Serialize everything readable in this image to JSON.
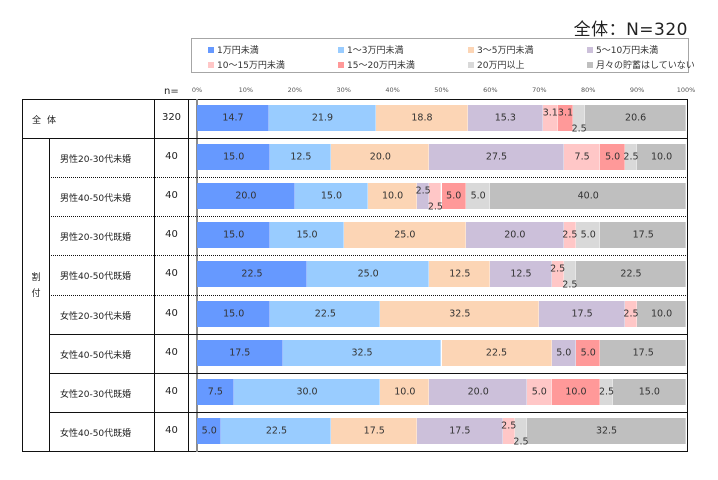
{
  "chart_data": {
    "type": "bar",
    "orientation": "horizontal-stacked-100",
    "title": "全体：N=320",
    "xlabel": "",
    "ylabel": "",
    "xlim": [
      0,
      100
    ],
    "x_ticks": [
      "0%",
      "10%",
      "20%",
      "30%",
      "40%",
      "50%",
      "60%",
      "70%",
      "80%",
      "90%",
      "100%"
    ],
    "n_header": "n=",
    "group_label": "割付",
    "legend_position": "top",
    "series": [
      {
        "name": "1万円未満",
        "color": "#6699ff"
      },
      {
        "name": "1～3万円未満",
        "color": "#99ccff"
      },
      {
        "name": "3～5万円未満",
        "color": "#fcd5b5"
      },
      {
        "name": "5～10万円未満",
        "color": "#ccc0da"
      },
      {
        "name": "10～15万円未満",
        "color": "#ffc7c7"
      },
      {
        "name": "15～20万円未満",
        "color": "#ff9999"
      },
      {
        "name": "20万円以上",
        "color": "#d9d9d9"
      },
      {
        "name": "月々の貯蓄はしていない",
        "color": "#bfbfbf"
      }
    ],
    "rows": [
      {
        "label": "全体",
        "n": "320",
        "values": [
          14.7,
          21.9,
          18.8,
          15.3,
          3.1,
          3.1,
          2.5,
          20.6
        ]
      },
      {
        "label": "男性20-30代未婚",
        "n": "40",
        "values": [
          15.0,
          12.5,
          20.0,
          27.5,
          7.5,
          5.0,
          2.5,
          10.0
        ]
      },
      {
        "label": "男性40-50代未婚",
        "n": "40",
        "values": [
          20.0,
          15.0,
          10.0,
          2.5,
          2.5,
          5.0,
          5.0,
          40.0
        ]
      },
      {
        "label": "男性20-30代既婚",
        "n": "40",
        "values": [
          15.0,
          15.0,
          25.0,
          20.0,
          2.5,
          0.0,
          5.0,
          17.5
        ]
      },
      {
        "label": "男性40-50代既婚",
        "n": "40",
        "values": [
          22.5,
          25.0,
          12.5,
          12.5,
          2.5,
          0.0,
          2.5,
          22.5
        ]
      },
      {
        "label": "女性20-30代未婚",
        "n": "40",
        "values": [
          15.0,
          22.5,
          32.5,
          17.5,
          2.5,
          0.0,
          0.0,
          10.0
        ]
      },
      {
        "label": "女性40-50代未婚",
        "n": "40",
        "values": [
          17.5,
          32.5,
          22.5,
          5.0,
          0.0,
          5.0,
          0.0,
          17.5
        ]
      },
      {
        "label": "女性20-30代既婚",
        "n": "40",
        "values": [
          7.5,
          30.0,
          10.0,
          20.0,
          5.0,
          10.0,
          2.5,
          15.0
        ]
      },
      {
        "label": "女性40-50代既婚",
        "n": "40",
        "values": [
          5.0,
          22.5,
          17.5,
          17.5,
          2.5,
          0.0,
          2.5,
          32.5
        ]
      }
    ]
  }
}
